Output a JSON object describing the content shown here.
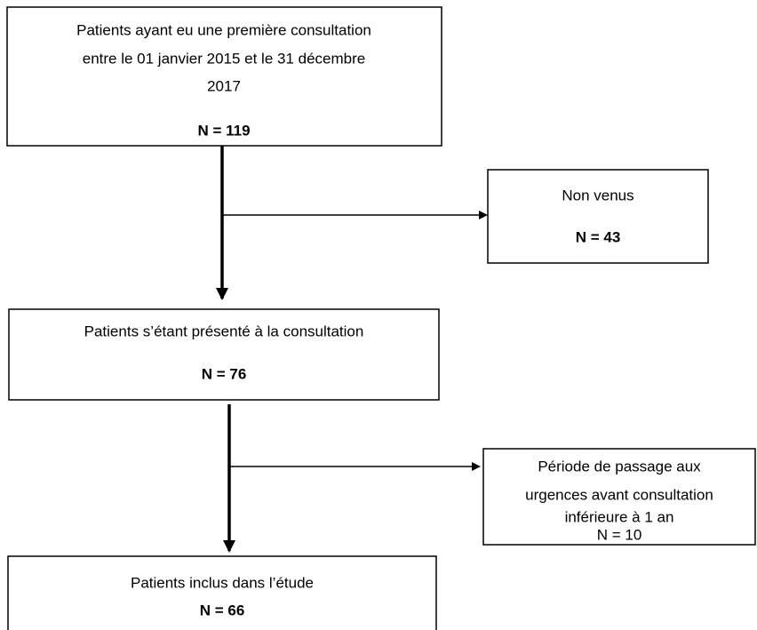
{
  "nodes": [
    {
      "lines": [
        "Patients ayant eu une première consultation",
        "entre le 01 janvier 2015 et le 31 décembre",
        "2017"
      ],
      "count": "N = 119"
    },
    {
      "lines": [
        "Non venus"
      ],
      "count": "N = 43"
    },
    {
      "lines": [
        "Patients s’étant présenté à la consultation"
      ],
      "count": "N = 76"
    },
    {
      "lines": [
        "Période de passage aux",
        "urgences avant consultation",
        "inférieure à 1 an"
      ],
      "count": "N = 10"
    },
    {
      "lines": [
        "Patients inclus dans l’étude"
      ],
      "count": "N = 66"
    }
  ]
}
